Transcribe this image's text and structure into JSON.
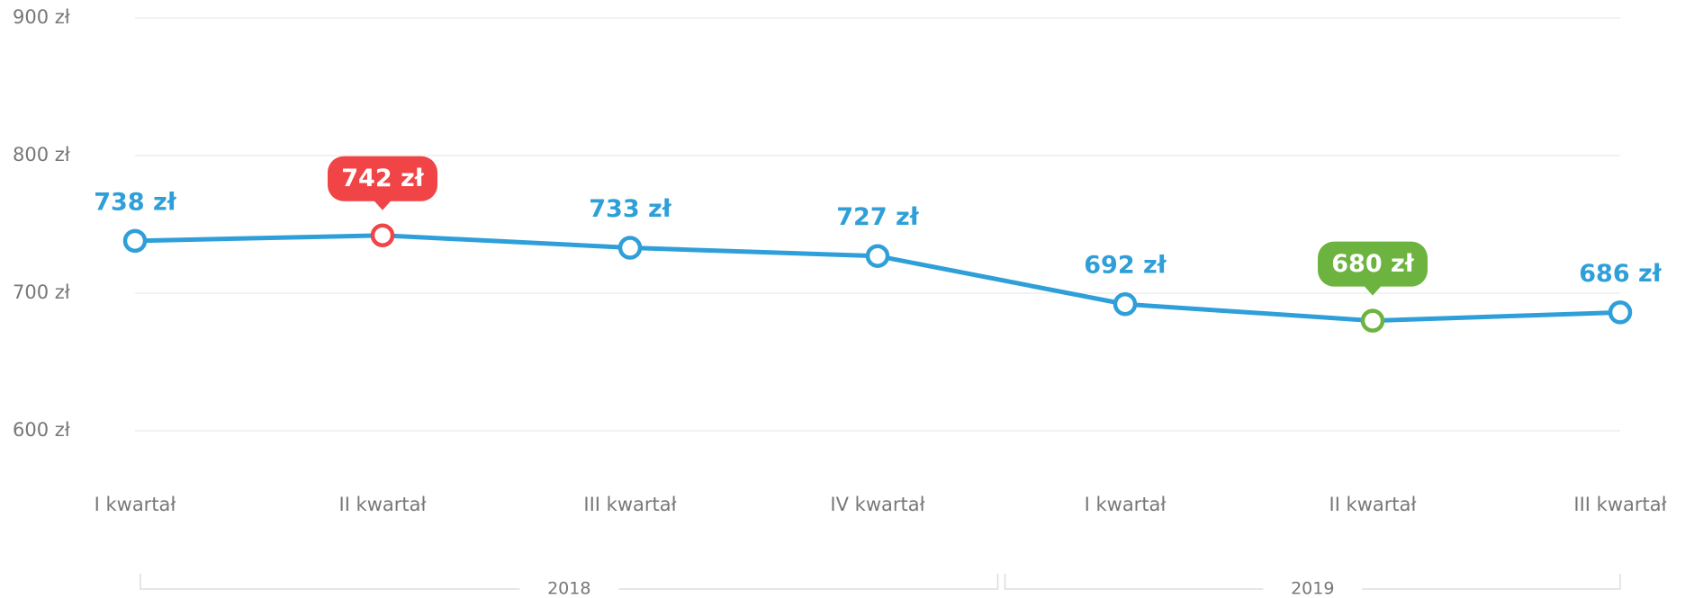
{
  "chart_data": {
    "type": "line",
    "categories": [
      "I kwartał",
      "II kwartał",
      "III kwartał",
      "IV kwartał",
      "I kwartał",
      "II kwartał",
      "III kwartał"
    ],
    "series": [
      {
        "color": "#2e9fd8",
        "values": [
          738,
          742,
          733,
          727,
          692,
          680,
          686
        ],
        "value_labels": [
          "738 zł",
          "742 zł",
          "733 zł",
          "727 zł",
          "692 zł",
          "680 zł",
          "686 zł"
        ]
      }
    ],
    "highlight_max_color": "#f04447",
    "highlight_min_color": "#6db33f",
    "groups": [
      {
        "label": "2018",
        "size": 4
      },
      {
        "label": "2019",
        "size": 3
      }
    ],
    "ylim": [
      600,
      900
    ],
    "yticks": [
      {
        "value": 600,
        "label": "600 zł"
      },
      {
        "value": 700,
        "label": "700 zł"
      },
      {
        "value": 800,
        "label": "800 zł"
      },
      {
        "value": 900,
        "label": "900 zł"
      }
    ],
    "grid": true
  }
}
